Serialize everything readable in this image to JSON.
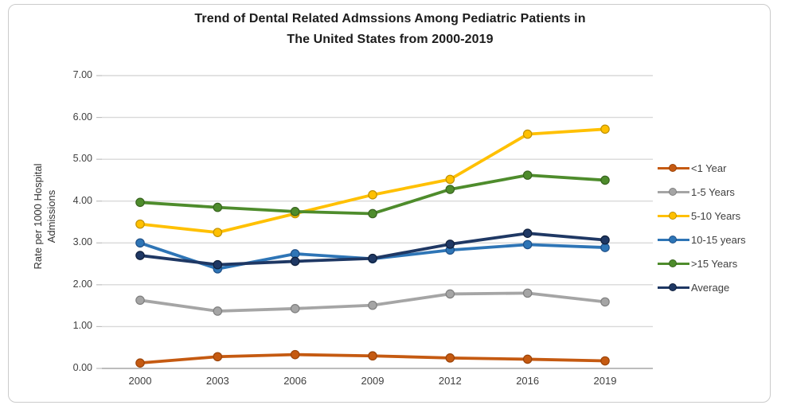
{
  "chart": {
    "title_line1": "Trend of Dental Related Admssions Among Pediatric Patients in",
    "title_line2": "The United States from 2000-2019",
    "y_axis_title": "Rate per 1000 Hospital Admissions"
  },
  "chart_data": {
    "type": "line",
    "title": "Trend of Dental Related Admssions Among Pediatric Patients in The United States from 2000-2019",
    "xlabel": "",
    "ylabel": "Rate per 1000 Hospital Admissions",
    "categories": [
      "2000",
      "2003",
      "2006",
      "2009",
      "2012",
      "2016",
      "2019"
    ],
    "ylim": [
      0,
      7
    ],
    "ytick_labels": [
      "0.00",
      "1.00",
      "2.00",
      "3.00",
      "4.00",
      "5.00",
      "6.00",
      "7.00"
    ],
    "grid": true,
    "legend_position": "right",
    "style": {
      "grid_color": "#d9d9d9",
      "axis_line_color": "#a6a6a6",
      "tick_color": "#bfbfbf"
    },
    "series": [
      {
        "name": "<1 Year",
        "color": "#C55A11",
        "marker_stroke": "#9c4409",
        "values": [
          0.13,
          0.28,
          0.33,
          0.3,
          0.25,
          0.22,
          0.18
        ]
      },
      {
        "name": "1-5 Years",
        "color": "#A5A5A5",
        "marker_stroke": "#7f7f7f",
        "values": [
          1.63,
          1.37,
          1.43,
          1.51,
          1.78,
          1.8,
          1.59
        ]
      },
      {
        "name": "5-10 Years",
        "color": "#FFC000",
        "marker_stroke": "#bf9000",
        "values": [
          3.45,
          3.25,
          3.7,
          4.15,
          4.52,
          5.6,
          5.72
        ]
      },
      {
        "name": "10-15 years",
        "color": "#2E75B6",
        "marker_stroke": "#1f5088",
        "values": [
          3.0,
          2.38,
          2.74,
          2.62,
          2.83,
          2.96,
          2.89
        ]
      },
      {
        "name": ">15 Years",
        "color": "#4E8C2C",
        "marker_stroke": "#38641f",
        "values": [
          3.97,
          3.85,
          3.75,
          3.7,
          4.28,
          4.62,
          4.5
        ]
      },
      {
        "name": "Average",
        "color": "#1F3864",
        "marker_stroke": "#0f1f3c",
        "values": [
          2.7,
          2.48,
          2.56,
          2.63,
          2.97,
          3.23,
          3.07
        ]
      }
    ]
  }
}
